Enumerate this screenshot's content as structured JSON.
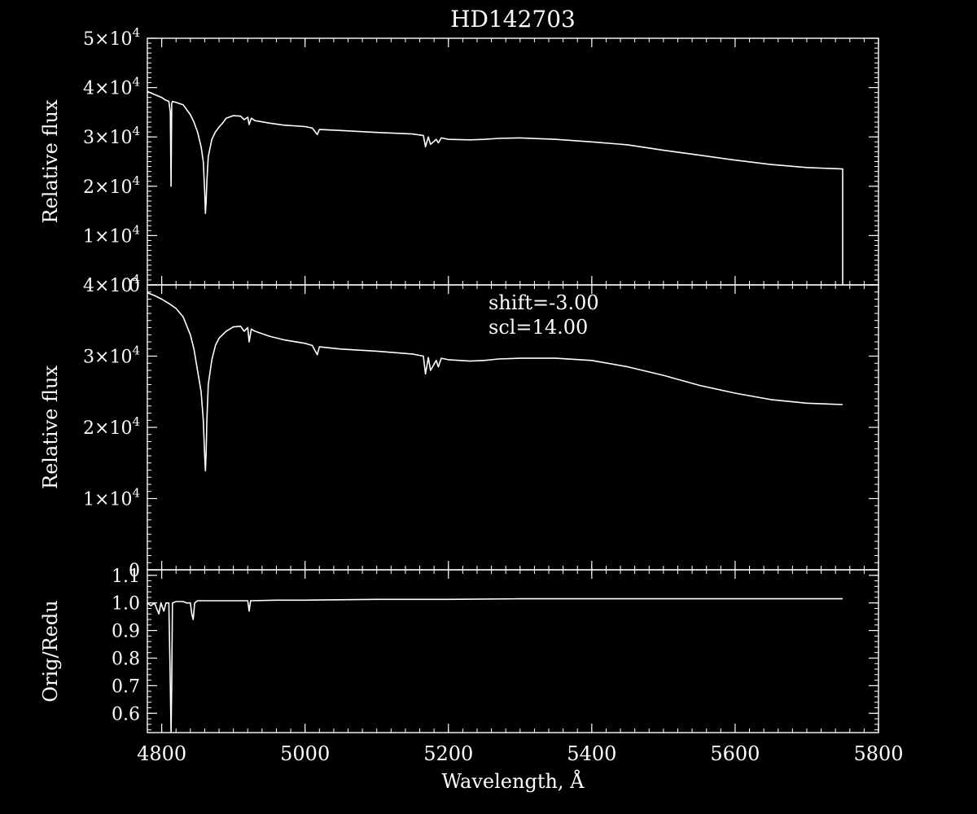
{
  "chart_data": {
    "type": "line",
    "title": "HD142703",
    "xlabel": "Wavelength, Å",
    "xlim": [
      4780,
      5800
    ],
    "x_data_end": 5750,
    "x_ticks": [
      4800,
      5000,
      5200,
      5400,
      5600,
      5800
    ],
    "x_tick_labels": [
      "4800",
      "5000",
      "5200",
      "5400",
      "5600",
      "5800"
    ],
    "x_minor_step": 20,
    "colors": {
      "background": "#000000",
      "foreground": "#ffffff"
    },
    "panels": [
      {
        "id": "original",
        "ylabel": "Relative flux",
        "ylim": [
          0,
          50000
        ],
        "y_ticks": [
          0,
          10000,
          20000,
          30000,
          40000,
          50000
        ],
        "y_tick_labels": [
          {
            "plain": "0"
          },
          {
            "mant": "1×10",
            "exp": "4"
          },
          {
            "mant": "2×10",
            "exp": "4"
          },
          {
            "mant": "3×10",
            "exp": "4"
          },
          {
            "mant": "4×10",
            "exp": "4"
          },
          {
            "mant": "5×10",
            "exp": "4"
          }
        ],
        "y_minor_step": 1000,
        "series": [
          {
            "x": [
              4780,
              4790,
              4800,
              4805,
              4810,
              4812,
              4813,
              4814,
              4815,
              4820,
              4830,
              4835,
              4840,
              4845,
              4850,
              4855,
              4858,
              4860,
              4861,
              4862,
              4863,
              4865,
              4870,
              4875,
              4880,
              4885,
              4890,
              4900,
              4910,
              4915,
              4920,
              4922,
              4925,
              4930,
              4950,
              4970,
              5000,
              5010,
              5017,
              5020,
              5050,
              5100,
              5150,
              5165,
              5168,
              5172,
              5175,
              5183,
              5186,
              5190,
              5200,
              5230,
              5250,
              5270,
              5300,
              5350,
              5400,
              5450,
              5500,
              5550,
              5600,
              5650,
              5700,
              5750,
              5750
            ],
            "y": [
              39200,
              38600,
              38000,
              37500,
              37200,
              35000,
              20000,
              36800,
              37200,
              37000,
              36500,
              35500,
              34500,
              33000,
              31000,
              28000,
              25000,
              19000,
              14500,
              17000,
              21000,
              26000,
              29500,
              31000,
              32000,
              32800,
              33800,
              34300,
              34200,
              33500,
              34000,
              32500,
              33800,
              33300,
              32800,
              32400,
              32100,
              31800,
              30500,
              31500,
              31300,
              30900,
              30600,
              30300,
              28000,
              30000,
              28500,
              29500,
              28800,
              29800,
              29500,
              29400,
              29500,
              29700,
              29800,
              29500,
              29000,
              28400,
              27300,
              26300,
              25300,
              24400,
              23800,
              23500,
              0
            ]
          }
        ]
      },
      {
        "id": "reduced",
        "ylabel": "Relative flux",
        "ylim": [
          0,
          40000
        ],
        "y_ticks": [
          0,
          10000,
          20000,
          30000,
          40000
        ],
        "y_tick_labels": [
          {
            "plain": "0"
          },
          {
            "mant": "1×10",
            "exp": "4"
          },
          {
            "mant": "2×10",
            "exp": "4"
          },
          {
            "mant": "3×10",
            "exp": "4"
          },
          {
            "mant": "4×10",
            "exp": "4"
          }
        ],
        "y_minor_step": 1000,
        "annotations": [
          "shift=-3.00",
          "scl=14.00"
        ],
        "series": [
          {
            "x": [
              4780,
              4790,
              4800,
              4810,
              4820,
              4830,
              4840,
              4845,
              4850,
              4855,
              4858,
              4860,
              4861,
              4862,
              4863,
              4865,
              4870,
              4875,
              4880,
              4890,
              4900,
              4910,
              4915,
              4920,
              4922,
              4925,
              4930,
              4950,
              4970,
              5000,
              5010,
              5017,
              5020,
              5050,
              5100,
              5150,
              5165,
              5168,
              5172,
              5175,
              5183,
              5186,
              5190,
              5200,
              5230,
              5250,
              5270,
              5300,
              5350,
              5400,
              5450,
              5500,
              5550,
              5600,
              5650,
              5700,
              5750
            ],
            "y": [
              38900,
              38500,
              38000,
              37400,
              36700,
              35500,
              33000,
              31000,
              28000,
              25000,
              21000,
              16000,
              13900,
              16500,
              21000,
              26000,
              29500,
              31500,
              32500,
              33500,
              34100,
              34200,
              33500,
              34000,
              32000,
              33800,
              33500,
              32800,
              32300,
              31800,
              31500,
              30200,
              31300,
              31000,
              30700,
              30300,
              30000,
              27500,
              29800,
              28000,
              29400,
              28500,
              29700,
              29500,
              29300,
              29400,
              29600,
              29700,
              29700,
              29400,
              28500,
              27300,
              25900,
              24800,
              23900,
              23400,
              23200
            ]
          }
        ]
      },
      {
        "id": "ratio",
        "ylabel": "Orig/Redu",
        "ylim": [
          0.53,
          1.12
        ],
        "y_ticks": [
          0.6,
          0.7,
          0.8,
          0.9,
          1.0,
          1.1
        ],
        "y_tick_labels": [
          {
            "plain": "0.6"
          },
          {
            "plain": "0.7"
          },
          {
            "plain": "0.8"
          },
          {
            "plain": "0.9"
          },
          {
            "plain": "1.0"
          },
          {
            "plain": "1.1"
          }
        ],
        "y_minor_step": 0.02,
        "series": [
          {
            "x": [
              4780,
              4785,
              4790,
              4793,
              4796,
              4799,
              4803,
              4806,
              4810,
              4812,
              4813,
              4814,
              4815,
              4820,
              4830,
              4835,
              4840,
              4842,
              4844,
              4846,
              4850,
              4900,
              4920,
              4922,
              4924,
              4960,
              5000,
              5100,
              5200,
              5300,
              5400,
              5500,
              5600,
              5700,
              5750
            ],
            "y": [
              1.0,
              0.99,
              1.0,
              0.98,
              0.96,
              1.0,
              0.97,
              1.0,
              1.0,
              0.7,
              0.53,
              0.7,
              1.0,
              1.005,
              1.005,
              1.0,
              1.0,
              0.96,
              0.94,
              1.0,
              1.008,
              1.008,
              1.008,
              0.97,
              1.008,
              1.01,
              1.01,
              1.013,
              1.013,
              1.015,
              1.015,
              1.015,
              1.015,
              1.015,
              1.015
            ]
          }
        ]
      }
    ]
  }
}
